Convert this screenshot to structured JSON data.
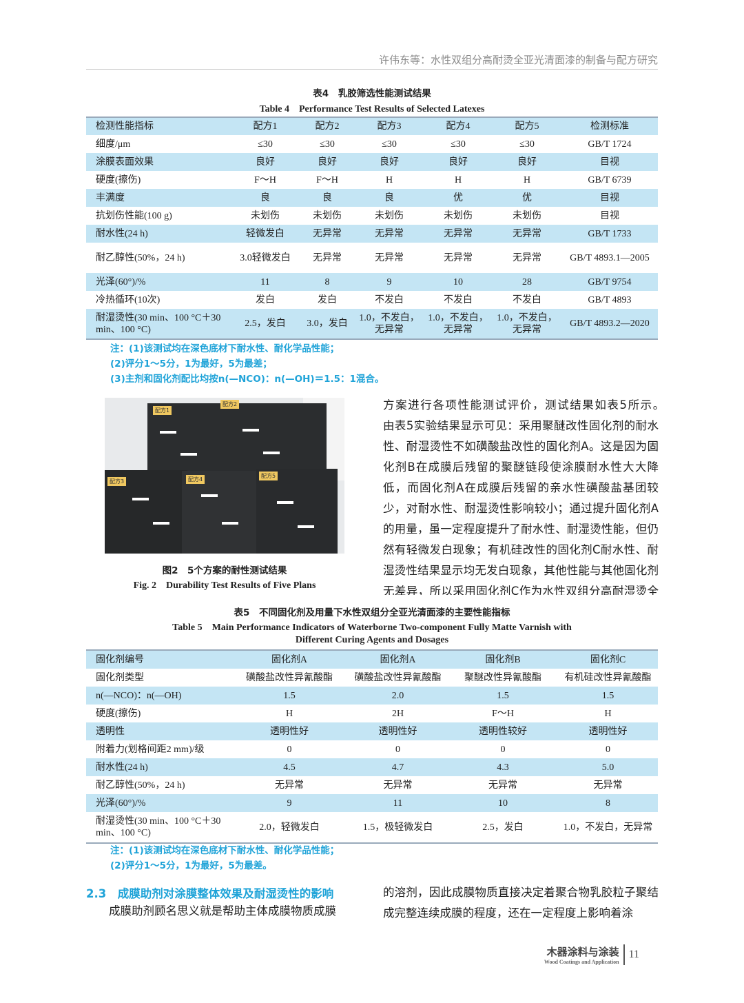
{
  "header": {
    "running_title": "许伟东等：水性双组分高耐烫全亚光清面漆的制备与配方研究"
  },
  "table4": {
    "caption_zh": "表4　乳胶筛选性能测试结果",
    "caption_en": "Table 4　Performance Test Results of Selected Latexes",
    "columns": [
      "检测性能指标",
      "配方1",
      "配方2",
      "配方3",
      "配方4",
      "配方5",
      "检测标准"
    ],
    "rows": [
      [
        "细度/μm",
        "≤30",
        "≤30",
        "≤30",
        "≤30",
        "≤30",
        "GB/T 1724"
      ],
      [
        "涂膜表面效果",
        "良好",
        "良好",
        "良好",
        "良好",
        "良好",
        "目视"
      ],
      [
        "硬度(擦伤)",
        "F～H",
        "F～H",
        "H",
        "H",
        "H",
        "GB/T 6739"
      ],
      [
        "丰满度",
        "良",
        "良",
        "良",
        "优",
        "优",
        "目视"
      ],
      [
        "抗划伤性能(100 g)",
        "未划伤",
        "未划伤",
        "未划伤",
        "未划伤",
        "未划伤",
        "目视"
      ],
      [
        "耐水性(24 h)",
        "轻微发白",
        "无异常",
        "无异常",
        "无异常",
        "无异常",
        "GB/T 1733"
      ],
      [
        "耐乙醇性(50%，24 h)",
        "3.0轻微发白",
        "无异常",
        "无异常",
        "无异常",
        "无异常",
        "GB/T 4893.1—2005"
      ],
      [
        "光泽(60°)/%",
        "11",
        "8",
        "9",
        "10",
        "28",
        "GB/T 9754"
      ],
      [
        "冷热循环(10次)",
        "发白",
        "发白",
        "不发白",
        "不发白",
        "不发白",
        "GB/T 4893"
      ],
      [
        "耐湿烫性(30 min、100 °C＋30 min、100 °C)",
        "2.5，发白",
        "3.0，发白",
        "1.0，不发白，无异常",
        "1.0，不发白，无异常",
        "1.0，不发白，无异常",
        "GB/T 4893.2—2020"
      ]
    ],
    "notes": [
      "注：(1)该测试均在深色底材下耐水性、耐化学品性能；",
      "(2)评分1～5分，1为最好，5为最差；",
      "(3)主剂和固化剂配比均按n(—NCO)：n(—OH)＝1.5：1混合。"
    ]
  },
  "figure2": {
    "labels": [
      "配方1",
      "配方2",
      "配方3",
      "配方4",
      "配方5"
    ],
    "caption_zh": "图2　5个方案的耐性测试结果",
    "caption_en": "Fig. 2　Durability Test Results of Five Plans"
  },
  "right_text": "方案进行各项性能测试评价，测试结果如表5所示。　　由表5实验结果显示可见：采用聚醚改性固化剂的耐水性、耐湿烫性不如磺酸盐改性的固化剂A。这是因为固化剂B在成膜后残留的聚醚链段使涂膜耐水性大大降低，而固化剂A在成膜后残留的亲水性磺酸盐基团较少，对耐水性、耐湿烫性影响较小；通过提升固化剂A的用量，虽一定程度提升了耐水性、耐湿烫性能，但仍然有轻微发白现象；有机硅改性的固化剂C耐水性、耐湿烫性结果显示均无发白现象，其他性能与其他固化剂无差异，所以采用固化剂C作为水性双组分高耐湿烫全亚光清面漆的配套固化剂。",
  "table5": {
    "caption_zh": "表5　不同固化剂及用量下水性双组分全亚光清面漆的主要性能指标",
    "caption_en1": "Table 5　Main Performance Indicators of Waterborne Two-component Fully Matte Varnish with",
    "caption_en2": "Different Curing Agents and Dosages",
    "columns": [
      "固化剂编号",
      "固化剂A",
      "固化剂A",
      "固化剂B",
      "固化剂C"
    ],
    "rows": [
      [
        "固化剂类型",
        "磺酸盐改性异氰酸酯",
        "磺酸盐改性异氰酸酯",
        "聚醚改性异氰酸酯",
        "有机硅改性异氰酸酯"
      ],
      [
        "n(—NCO)：n(—OH)",
        "1.5",
        "2.0",
        "1.5",
        "1.5"
      ],
      [
        "硬度(擦伤)",
        "H",
        "2H",
        "F～H",
        "H"
      ],
      [
        "透明性",
        "透明性好",
        "透明性好",
        "透明性较好",
        "透明性好"
      ],
      [
        "附着力(划格间距2 mm)/级",
        "0",
        "0",
        "0",
        "0"
      ],
      [
        "耐水性(24 h)",
        "4.5",
        "4.7",
        "4.3",
        "5.0"
      ],
      [
        "耐乙醇性(50%，24 h)",
        "无异常",
        "无异常",
        "无异常",
        "无异常"
      ],
      [
        "光泽(60°)/%",
        "9",
        "11",
        "10",
        "8"
      ],
      [
        "耐湿烫性(30 min、100 °C＋30 min、100 °C)",
        "2.0，轻微发白",
        "1.5，极轻微发白",
        "2.5，发白",
        "1.0，不发白，无异常"
      ]
    ],
    "notes": [
      "注：(1)该测试均在深色底材下耐水性、耐化学品性能；",
      "(2)评分1～5分，1为最好，5为最差。"
    ]
  },
  "section": {
    "number": "2.3",
    "title": "成膜助剂对涂膜整体效果及耐湿烫性的影响",
    "left_text": "　　成膜助剂顾名思义就是帮助主体成膜物质成膜",
    "right_text": "的溶剂，因此成膜物质直接决定着聚合物乳胶粒子聚结成完整连续成膜的程度，还在一定程度上影响着涂"
  },
  "footer": {
    "journal_zh": "木器涂料与涂装",
    "journal_en": "Wood Coatings and Application",
    "page": "11"
  },
  "colors": {
    "accent": "#1fa3d8",
    "table_band": "#c4e5f4"
  }
}
